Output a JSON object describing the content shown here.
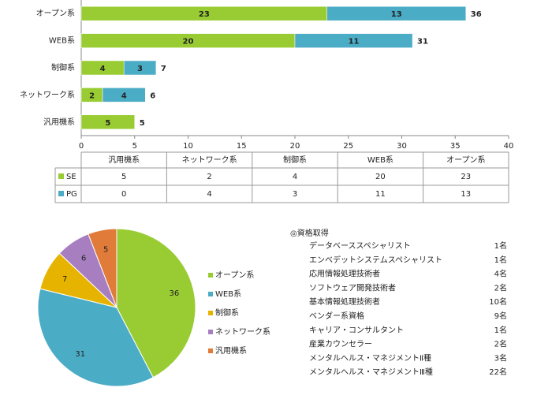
{
  "chart_data": [
    {
      "type": "stacked-bar-h",
      "categories": [
        "オープン系",
        "WEB系",
        "制御系",
        "ネットワーク系",
        "汎用機系"
      ],
      "series": [
        {
          "name": "SE",
          "color": "#99cc33",
          "values": [
            23,
            20,
            4,
            2,
            5
          ]
        },
        {
          "name": "PG",
          "color": "#4bacc6",
          "values": [
            13,
            11,
            3,
            4,
            0
          ]
        }
      ],
      "totals": [
        36,
        31,
        7,
        6,
        5
      ],
      "xlim": [
        0,
        40
      ],
      "xticks": [
        0,
        5,
        10,
        15,
        20,
        25,
        30,
        35,
        40
      ],
      "data_table": true
    },
    {
      "type": "pie",
      "categories": [
        "オープン系",
        "WEB系",
        "制御系",
        "ネットワーク系",
        "汎用機系"
      ],
      "values": [
        36,
        31,
        7,
        6,
        5
      ],
      "colors": [
        "#99cc33",
        "#4bacc6",
        "#e6b400",
        "#a77fc0",
        "#e07b39"
      ]
    }
  ],
  "qualifications": {
    "title": "◎資格取得",
    "items": [
      {
        "name": "データベーススペシャリスト",
        "count": "1名"
      },
      {
        "name": "エンベデットシステムスペシャリスト",
        "count": "1名"
      },
      {
        "name": "応用情報処理技術者",
        "count": "4名"
      },
      {
        "name": "ソフトウェア開発技術者",
        "count": "2名"
      },
      {
        "name": "基本情報処理技術者",
        "count": "10名"
      },
      {
        "name": "ベンダー系資格",
        "count": "9名"
      },
      {
        "name": "キャリア・コンサルタント",
        "count": "1名"
      },
      {
        "name": "産業カウンセラー",
        "count": "2名"
      },
      {
        "name": "メンタルヘルス・マネジメントⅡ種",
        "count": "3名"
      },
      {
        "name": "メンタルヘルス・マネジメントⅢ種",
        "count": "22名"
      }
    ]
  }
}
